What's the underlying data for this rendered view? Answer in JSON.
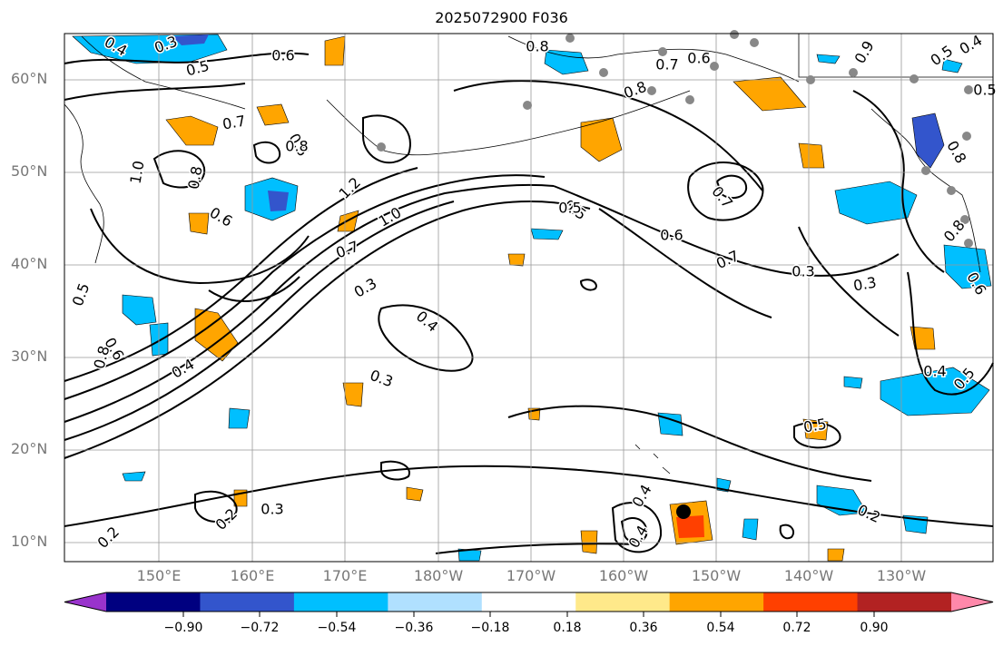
{
  "title": "2025072900 F036",
  "map": {
    "latitude_labels": [
      "60°N",
      "50°N",
      "40°N",
      "30°N",
      "20°N",
      "10°N"
    ],
    "longitude_labels": [
      "150°E",
      "160°E",
      "170°E",
      "180°W",
      "170°W",
      "160°W",
      "150°W",
      "140°W",
      "130°W"
    ],
    "contour_labels": [
      "0.3",
      "0.4",
      "0.5",
      "0.6",
      "0.8",
      "0.7",
      "0.8",
      "1.0",
      "0.8",
      "0.6",
      "1.2",
      "1.0",
      "0.7",
      "0.3",
      "0.4",
      "0.3",
      "0.5",
      "0.7",
      "0.6",
      "0.7",
      "0.3",
      "0.4",
      "0.5",
      "0.6",
      "0.8",
      "0.4",
      "0.2",
      "0.2",
      "0.3",
      "0.4",
      "0.2",
      "0.5",
      "0.7",
      "0.5",
      "0.8",
      "0.5",
      "0.6",
      "0.5",
      "0.4",
      "0.3",
      "0.9",
      "0.8",
      "0.4",
      "0.6",
      "0.8",
      "0.5",
      "0.6"
    ]
  },
  "colorbar": {
    "colors": [
      "#9933cc",
      "#000080",
      "#3355cc",
      "#00bfff",
      "#b0e0ff",
      "#ffffff",
      "#ffe98a",
      "#ffa500",
      "#ff4000",
      "#b22222",
      "#ff88aa"
    ],
    "tick_labels": [
      "−0.90",
      "−0.72",
      "−0.54",
      "−0.36",
      "−0.18",
      "0.18",
      "0.36",
      "0.54",
      "0.72",
      "0.90"
    ]
  },
  "legend_colors": {
    "contour": "#000000",
    "coast": "#000000",
    "grid": "#999999",
    "station": "#888888",
    "marker": "#000000"
  }
}
